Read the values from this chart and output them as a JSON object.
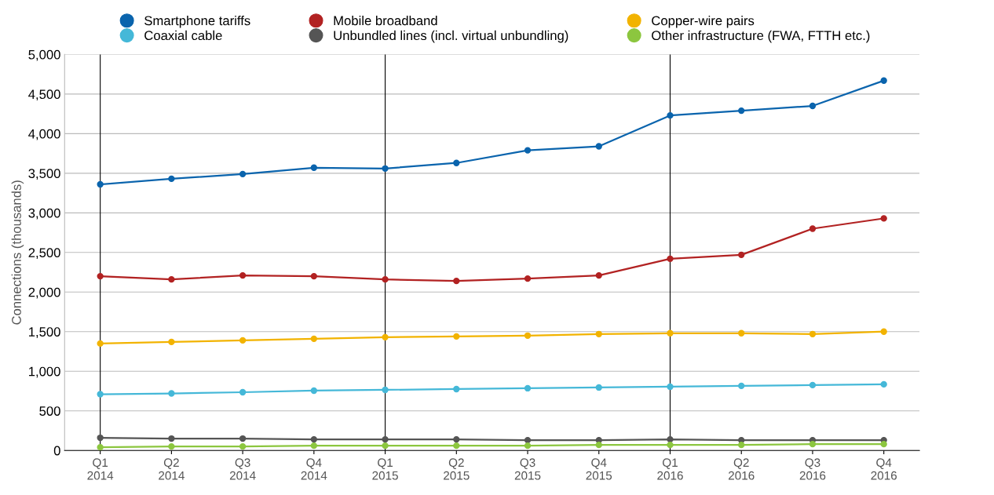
{
  "chart_data": {
    "type": "line",
    "ylabel": "Connections (thousands)",
    "categories": [
      "Q1\n2014",
      "Q2\n2014",
      "Q3\n2014",
      "Q4\n2014",
      "Q1\n2015",
      "Q2\n2015",
      "Q3\n2015",
      "Q4\n2015",
      "Q1\n2016",
      "Q2\n2016",
      "Q3\n2016",
      "Q4\n2016"
    ],
    "series": [
      {
        "name": "Smartphone tariffs",
        "color": "#0a64ad",
        "values": [
          3360,
          3430,
          3490,
          3570,
          3560,
          3630,
          3790,
          3840,
          4230,
          4290,
          4350,
          4670
        ]
      },
      {
        "name": "Coaxial cable",
        "color": "#45b8d8",
        "values": [
          710,
          720,
          735,
          755,
          765,
          775,
          785,
          795,
          805,
          815,
          825,
          835
        ]
      },
      {
        "name": "Mobile broadband",
        "color": "#b22222",
        "values": [
          2200,
          2160,
          2210,
          2200,
          2160,
          2140,
          2170,
          2210,
          2420,
          2470,
          2800,
          2930
        ]
      },
      {
        "name": "Unbundled lines (incl. virtual unbundling)",
        "color": "#555555",
        "values": [
          160,
          150,
          150,
          140,
          140,
          140,
          130,
          130,
          140,
          130,
          130,
          130
        ]
      },
      {
        "name": "Copper-wire pairs",
        "color": "#f2b300",
        "values": [
          1350,
          1370,
          1390,
          1410,
          1430,
          1440,
          1450,
          1470,
          1480,
          1480,
          1470,
          1500
        ]
      },
      {
        "name": "Other infrastructure (FWA, FTTH etc.)",
        "color": "#8cc63f",
        "values": [
          40,
          50,
          50,
          60,
          60,
          60,
          60,
          70,
          70,
          70,
          80,
          80
        ]
      }
    ],
    "ylim": [
      0,
      5000
    ],
    "yticks": [
      0,
      500,
      {
        "value": 1000,
        "label": "1,000"
      },
      {
        "value": 1500,
        "label": "1,500"
      },
      {
        "value": 2000,
        "label": "2,000"
      },
      {
        "value": 2500,
        "label": "2,500"
      },
      {
        "value": 3000,
        "label": "3,000"
      },
      {
        "value": 3500,
        "label": "3,500"
      },
      {
        "value": 4000,
        "label": "4,000"
      },
      {
        "value": 4500,
        "label": "4,500"
      },
      {
        "value": 5000,
        "label": "5,000"
      }
    ],
    "ref_lines": [
      {
        "axis": "x",
        "value": "Q1\n2014",
        "color": "#000000"
      },
      {
        "axis": "x",
        "value": "Q1\n2015",
        "color": "#000000"
      },
      {
        "axis": "x",
        "value": "Q1\n2016",
        "color": "#000000"
      }
    ],
    "grid": "y",
    "legend": "top",
    "marker": "circle",
    "line_style": "solid"
  }
}
